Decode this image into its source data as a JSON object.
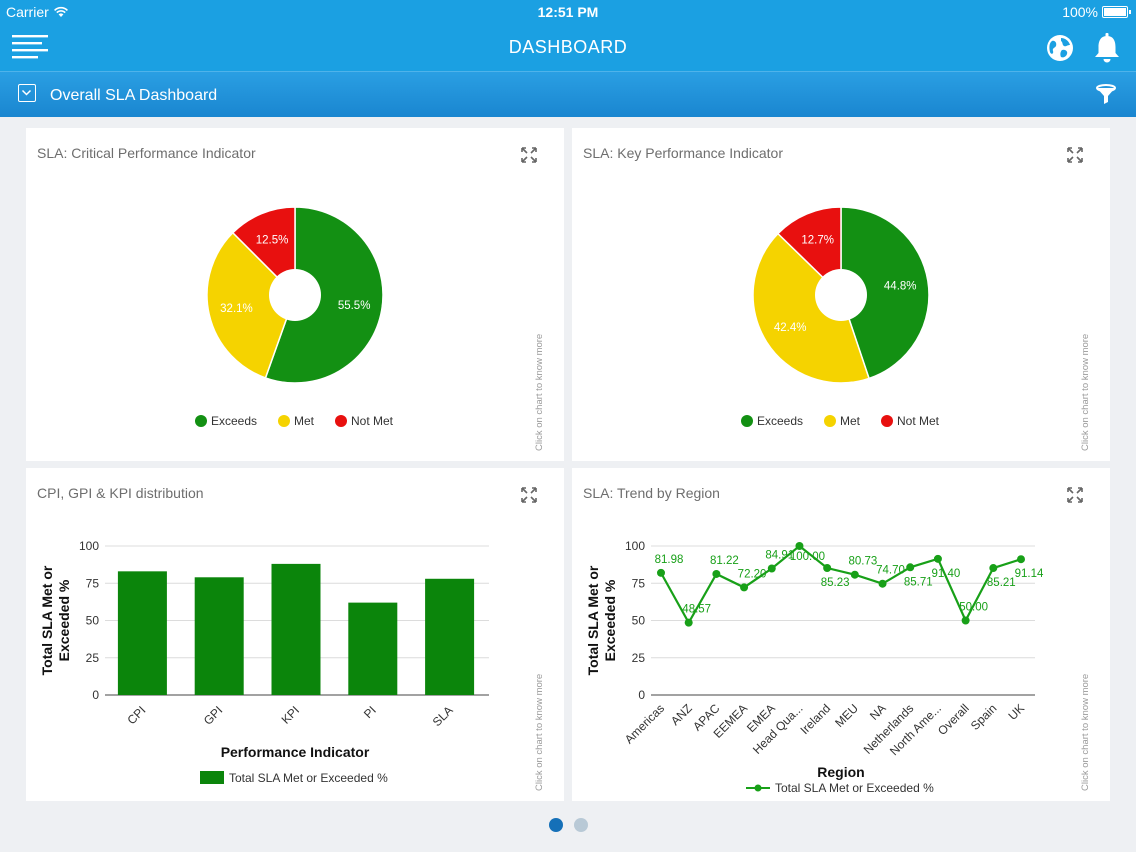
{
  "status_bar": {
    "carrier": "Carrier",
    "time": "12:51 PM",
    "battery": "100%"
  },
  "nav": {
    "title": "DASHBOARD"
  },
  "subheader": {
    "title": "Overall SLA Dashboard"
  },
  "colors": {
    "exceeds": "#139013",
    "met": "#f5d300",
    "not_met": "#e8100f",
    "bar": "#0b850b",
    "line": "#18a018",
    "accent": "#1ba0e2"
  },
  "hint_text": "Click on chart to know more",
  "cards": {
    "cpi_pie": {
      "title": "SLA: Critical Performance Indicator"
    },
    "kpi_pie": {
      "title": "SLA: Key Performance Indicator"
    },
    "bar": {
      "title": "CPI, GPI & KPI distribution"
    },
    "trend": {
      "title": "SLA: Trend by Region"
    }
  },
  "chart_data": [
    {
      "type": "pie",
      "title": "SLA: Critical Performance Indicator",
      "labels": [
        "Exceeds",
        "Met",
        "Not Met"
      ],
      "values": [
        55.5,
        32.1,
        12.5
      ],
      "value_labels": [
        "55.5%",
        "32.1%",
        "12.5%"
      ],
      "legend": [
        "Exceeds",
        "Met",
        "Not Met"
      ],
      "legend_position": "bottom"
    },
    {
      "type": "pie",
      "title": "SLA: Key Performance Indicator",
      "labels": [
        "Exceeds",
        "Met",
        "Not Met"
      ],
      "values": [
        44.8,
        42.4,
        12.7
      ],
      "value_labels": [
        "44.8%",
        "42.4%",
        "12.7%"
      ],
      "legend": [
        "Exceeds",
        "Met",
        "Not Met"
      ],
      "legend_position": "bottom"
    },
    {
      "type": "bar",
      "title": "CPI, GPI & KPI distribution",
      "categories": [
        "CPI",
        "GPI",
        "KPI",
        "PI",
        "SLA"
      ],
      "values": [
        83,
        79,
        88,
        62,
        78
      ],
      "xlabel": "Performance Indicator",
      "ylabel": "Total SLA Met or Exceeded %",
      "ylim": [
        0,
        100
      ],
      "yticks": [
        "0",
        "25",
        "50",
        "75",
        "100"
      ],
      "series_name": "Total SLA Met or Exceeded %",
      "grid": true,
      "legend_position": "bottom"
    },
    {
      "type": "line",
      "title": "SLA: Trend by Region",
      "categories": [
        "Americas",
        "ANZ",
        "APAC",
        "EEMEA",
        "EMEA",
        "Head Qua...",
        "Ireland",
        "MEU",
        "NA",
        "Netherlands",
        "North Ame...",
        "Overall",
        "Spain",
        "UK"
      ],
      "x_values": [
        "Americas",
        "ANZ",
        "APAC",
        "EEMEA",
        "EMEA",
        "Head Quarters",
        "Ireland",
        "MEU",
        "NA",
        "Netherlands",
        "North America",
        "Overall",
        "Spain",
        "UK"
      ],
      "values": [
        81.98,
        48.57,
        81.22,
        72.2,
        84.91,
        100.0,
        85.23,
        80.73,
        74.7,
        85.71,
        91.4,
        50.0,
        85.21,
        91.14
      ],
      "value_labels": [
        "81.98",
        "48.57",
        "81.22",
        "72.20",
        "84.91",
        "100.00",
        "85.23",
        "80.73",
        "74.70",
        "85.71",
        "91.40",
        "50.00",
        "85.21",
        "91.14"
      ],
      "xlabel": "Region",
      "ylabel": "Total SLA Met or Exceeded %",
      "ylim": [
        0,
        100
      ],
      "yticks": [
        "0",
        "25",
        "50",
        "75",
        "100"
      ],
      "series_name": "Total SLA Met or Exceeded %",
      "grid": true,
      "legend_position": "bottom"
    }
  ],
  "pager": {
    "pages": 2,
    "active": 0
  }
}
